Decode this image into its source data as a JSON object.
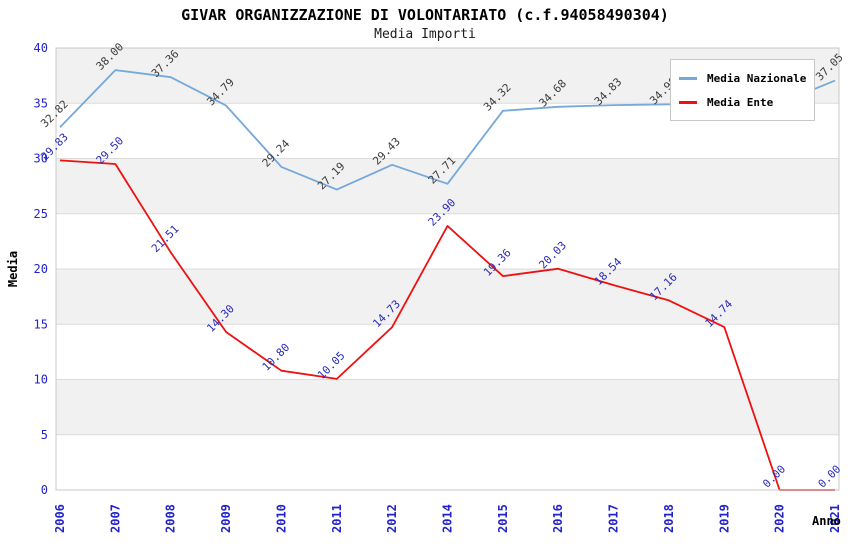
{
  "title": "GIVAR ORGANIZZAZIONE DI VOLONTARIATO (c.f.94058490304)",
  "subtitle": "Media Importi",
  "chart_data": {
    "type": "line",
    "categories": [
      "2006",
      "2007",
      "2008",
      "2009",
      "2010",
      "2011",
      "2012",
      "2014",
      "2015",
      "2016",
      "2017",
      "2018",
      "2019",
      "2020",
      "2021"
    ],
    "series": [
      {
        "name": "Media Nazionale",
        "color": "#74a9d9",
        "label_color": "#3c3c3c",
        "values": [
          32.82,
          38.0,
          37.36,
          34.79,
          29.24,
          27.19,
          29.43,
          27.71,
          34.32,
          34.68,
          34.83,
          34.9,
          34.95,
          35.0,
          37.05
        ]
      },
      {
        "name": "Media Ente",
        "color": "#ee1111",
        "label_color": "#2a2ab9",
        "values": [
          29.83,
          29.5,
          21.51,
          14.3,
          10.8,
          10.05,
          14.73,
          23.9,
          19.36,
          20.03,
          18.54,
          17.16,
          14.74,
          0.0,
          0.0
        ]
      }
    ],
    "xlabel": "Anno",
    "ylabel": "Media",
    "ylim": [
      0,
      40
    ],
    "ytick_step": 5,
    "grid": "horizontal-bands",
    "legend_position": "top-right",
    "colors": {
      "tick_label": "#2323cc",
      "band_gray": "#f1f1f1",
      "band_white": "#ffffff",
      "gridline": "#dcdcdc",
      "plot_border": "#c8c8c8"
    }
  }
}
